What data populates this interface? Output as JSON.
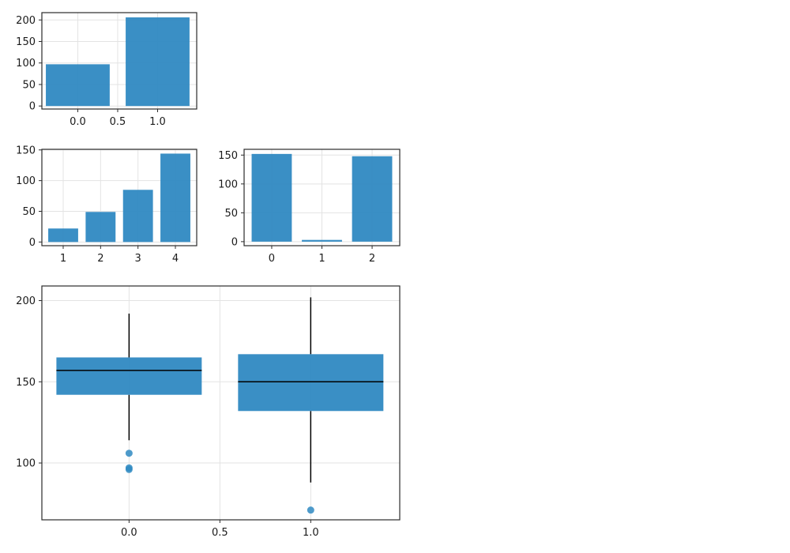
{
  "colors": {
    "bar": "#2f89c2",
    "outlier": "#2f89c2",
    "median": "#000000",
    "whisker": "#000000"
  },
  "chart_data": [
    {
      "type": "bar",
      "x": [
        0,
        1
      ],
      "values": [
        97,
        206
      ],
      "xlim": [
        -0.45,
        1.49
      ],
      "ylim": [
        -7,
        217
      ],
      "xticks": [
        0.0,
        0.5,
        1.0
      ],
      "xtick_labels": [
        "0.0",
        "0.5",
        "1.0"
      ],
      "yticks": [
        0,
        50,
        100,
        150,
        200
      ],
      "ytick_labels": [
        "0",
        "50",
        "100",
        "150",
        "200"
      ],
      "bar_width": 0.8,
      "grid": true
    },
    {
      "type": "bar",
      "x": [
        1,
        2,
        3,
        4
      ],
      "values": [
        22,
        49,
        85,
        144
      ],
      "xlim": [
        0.43,
        4.57
      ],
      "ylim": [
        -6,
        151
      ],
      "xticks": [
        1,
        2,
        3,
        4
      ],
      "xtick_labels": [
        "1",
        "2",
        "3",
        "4"
      ],
      "yticks": [
        0,
        50,
        100,
        150
      ],
      "ytick_labels": [
        "0",
        "50",
        "100",
        "150"
      ],
      "bar_width": 0.8,
      "grid": true
    },
    {
      "type": "bar",
      "x": [
        0,
        1,
        2
      ],
      "values": [
        152,
        3,
        148
      ],
      "xlim": [
        -0.55,
        2.55
      ],
      "ylim": [
        -7,
        160
      ],
      "xticks": [
        0,
        1,
        2
      ],
      "xtick_labels": [
        "0",
        "1",
        "2"
      ],
      "yticks": [
        0,
        50,
        100,
        150
      ],
      "ytick_labels": [
        "0",
        "50",
        "100",
        "150"
      ],
      "bar_width": 0.8,
      "grid": true
    },
    {
      "type": "box",
      "x": [
        0,
        1
      ],
      "boxes": [
        {
          "x": 0,
          "q1": 142,
          "median": 157,
          "q3": 165,
          "whisker_low": 114,
          "whisker_high": 192,
          "outliers": [
            106,
            97,
            96
          ]
        },
        {
          "x": 1,
          "q1": 132,
          "median": 150,
          "q3": 167,
          "whisker_low": 88,
          "whisker_high": 202,
          "outliers": [
            71
          ]
        }
      ],
      "xlim": [
        -0.48,
        1.49
      ],
      "ylim": [
        65,
        209
      ],
      "xticks": [
        0.0,
        0.5,
        1.0
      ],
      "xtick_labels": [
        "0.0",
        "0.5",
        "1.0"
      ],
      "yticks": [
        100,
        150,
        200
      ],
      "ytick_labels": [
        "100",
        "150",
        "200"
      ],
      "box_width": 0.8,
      "grid": true
    }
  ]
}
